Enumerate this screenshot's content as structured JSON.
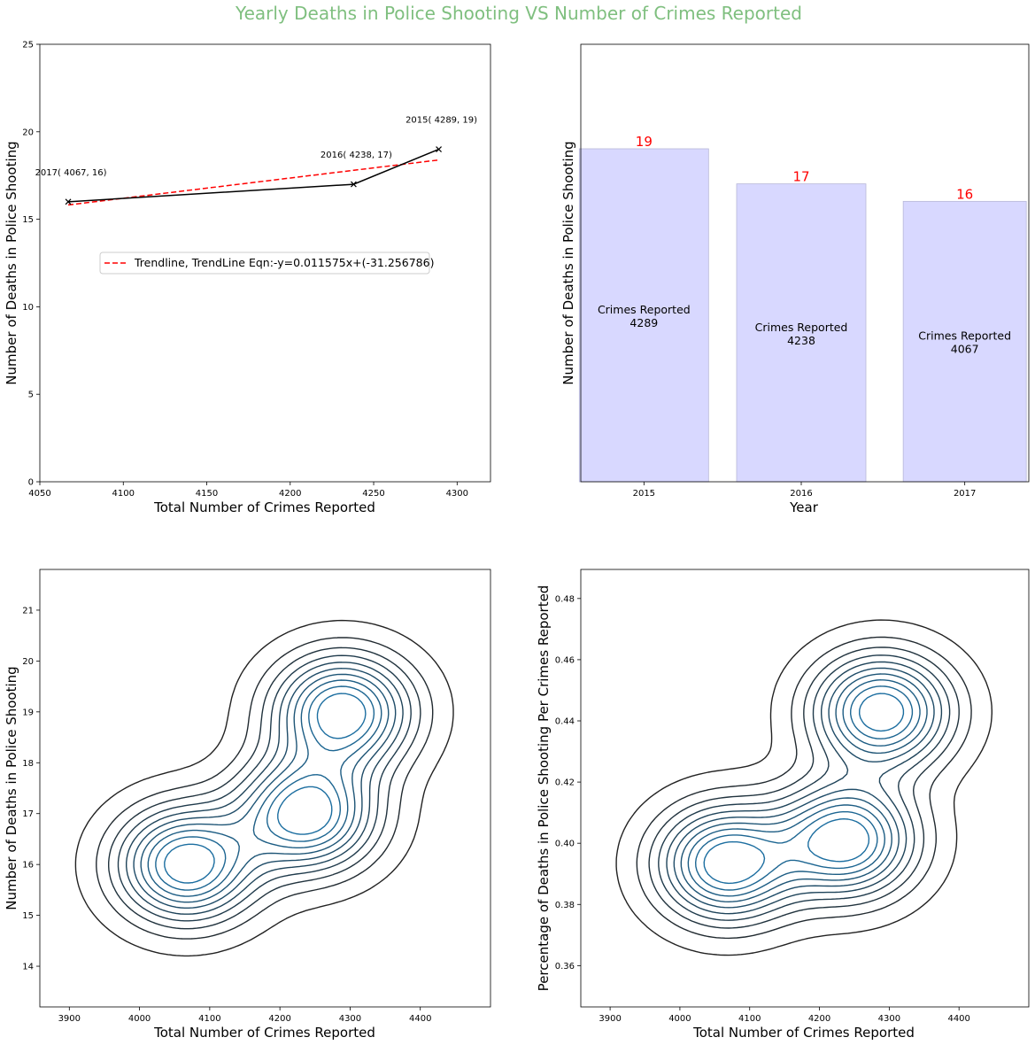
{
  "figure": {
    "suptitle": "Yearly Deaths in Police Shooting VS Number of Crimes Reported",
    "suptitle_color": "#7fbf7f"
  },
  "chart_data": [
    {
      "type": "line",
      "ylabel": "Number of Deaths in Police Shooting",
      "xlabel": "Total Number of Crimes Reported",
      "xlim": [
        4050,
        4320
      ],
      "ylim": [
        0,
        25
      ],
      "xticks": [
        "4050",
        "4100",
        "4150",
        "4200",
        "4250",
        "4300"
      ],
      "yticks": [
        "0",
        "5",
        "10",
        "15",
        "20",
        "25"
      ],
      "grid": false,
      "series": [
        {
          "points": [
            [
              4067,
              16
            ],
            [
              4238,
              17
            ],
            [
              4289,
              19
            ]
          ],
          "color": "#000000",
          "marker": "x"
        }
      ],
      "trendline": {
        "label": "Trendline, TrendLine Eqn:-y=0.011575x+(-31.256786)",
        "slope": 0.011575,
        "intercept": -31.256786,
        "x_range": [
          4067,
          4289
        ],
        "color": "#ff0000",
        "style": "dashed"
      },
      "annotations": [
        {
          "text": "2017( 4067, 16)",
          "x": 4067,
          "y": 16
        },
        {
          "text": "2016( 4238, 17)",
          "x": 4238,
          "y": 17
        },
        {
          "text": "2015( 4289, 19)",
          "x": 4289,
          "y": 19
        }
      ],
      "legend_placement": "center"
    },
    {
      "type": "bar",
      "xlabel": "Year",
      "ylabel": "Number of Deaths in Police Shooting",
      "categories": [
        "2015",
        "2016",
        "2017"
      ],
      "values": [
        19,
        17,
        16
      ],
      "ylim": [
        0,
        19
      ],
      "bar_color": "#d8d8ff",
      "value_label_color": "#ff0000",
      "bar_labels": [
        {
          "line1": "Crimes Reported",
          "line2": "4289"
        },
        {
          "line1": "Crimes Reported",
          "line2": "4238"
        },
        {
          "line1": "Crimes Reported",
          "line2": "4067"
        }
      ]
    },
    {
      "type": "kde-contour",
      "xlabel": "Total Number of Crimes Reported",
      "ylabel": "Number of Deaths in Police Shooting",
      "xlim": [
        3858,
        4500
      ],
      "ylim": [
        13.2,
        21.8
      ],
      "xticks": [
        3900,
        4000,
        4100,
        4200,
        4300,
        4400
      ],
      "yticks": [
        14,
        15,
        16,
        17,
        18,
        19,
        20,
        21
      ],
      "points": [
        [
          4067,
          16
        ],
        [
          4238,
          17
        ],
        [
          4289,
          19
        ]
      ]
    },
    {
      "type": "kde-contour",
      "xlabel": "Total Number of Crimes Reported",
      "ylabel": "Percentage of Deaths in Police Shooting Per Crimes Reported",
      "xlim": [
        3858,
        4500
      ],
      "ylim": [
        0.3465,
        0.4895
      ],
      "xticks": [
        3900,
        4000,
        4100,
        4200,
        4300,
        4400
      ],
      "yticks": [
        0.36,
        0.38,
        0.4,
        0.42,
        0.44,
        0.46,
        0.48
      ],
      "points": [
        [
          4067,
          0.3934
        ],
        [
          4238,
          0.4011
        ],
        [
          4289,
          0.443
        ]
      ]
    }
  ]
}
